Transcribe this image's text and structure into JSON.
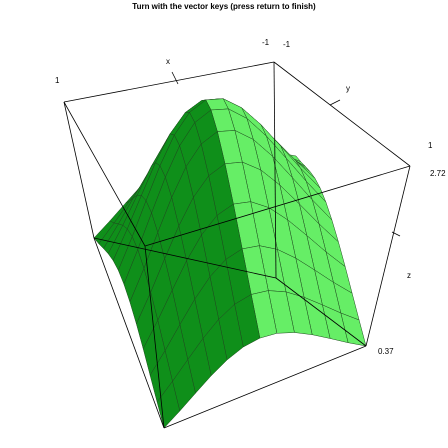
{
  "title": "Turn with the vector keys (press return to finish)",
  "chart_data": {
    "type": "surface3d",
    "axes": {
      "x": {
        "label": "x",
        "tick_labels": [
          "1",
          "-1"
        ]
      },
      "y": {
        "label": "y",
        "tick_labels": [
          "-1",
          "1"
        ]
      },
      "z": {
        "label": "z",
        "tick_labels": [
          "2.72",
          "0.37"
        ]
      }
    },
    "surface": {
      "grid": 12,
      "colors": {
        "dark": "#0f8f1a",
        "light": "#66ee66",
        "mesh": "#1e4a1e",
        "edge": "#0b3a0b"
      }
    }
  }
}
